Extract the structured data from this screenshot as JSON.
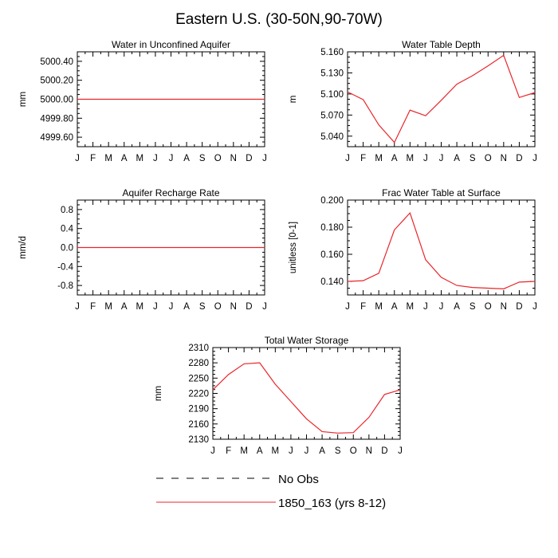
{
  "title": "Eastern U.S. (30-50N,90-70W)",
  "colors": {
    "model": "#e8262b",
    "obs": "#000000",
    "frame": "#000000"
  },
  "legend": [
    {
      "key": "obs",
      "label": "No Obs",
      "style": "dashed",
      "color": "#000000"
    },
    {
      "key": "model",
      "label": "1850_163 (yrs 8-12)",
      "style": "solid",
      "color": "#e8262b"
    }
  ],
  "chart_data": [
    {
      "id": "aquifer-water",
      "type": "line",
      "title": "Water in Unconfined Aquifer",
      "ylabel": "mm",
      "categories": [
        "J",
        "F",
        "M",
        "A",
        "M",
        "J",
        "J",
        "A",
        "S",
        "O",
        "N",
        "D",
        "J"
      ],
      "ylim": [
        4999.5,
        5000.5
      ],
      "yticks": [
        4999.6,
        4999.8,
        5000.0,
        5000.2,
        5000.4
      ],
      "ytick_labels": [
        "4999.60",
        "4999.80",
        "5000.00",
        "5000.20",
        "5000.40"
      ],
      "series": [
        {
          "values": [
            5000,
            5000,
            5000,
            5000,
            5000,
            5000,
            5000,
            5000,
            5000,
            5000,
            5000,
            5000,
            5000
          ]
        }
      ]
    },
    {
      "id": "water-table-depth",
      "type": "line",
      "title": "Water Table Depth",
      "ylabel": "m",
      "categories": [
        "J",
        "F",
        "M",
        "A",
        "M",
        "J",
        "J",
        "A",
        "S",
        "O",
        "N",
        "D",
        "J"
      ],
      "ylim": [
        5.025,
        5.16
      ],
      "yticks": [
        5.04,
        5.07,
        5.1,
        5.13,
        5.16
      ],
      "ytick_labels": [
        "5.040",
        "5.070",
        "5.100",
        "5.130",
        "5.160"
      ],
      "series": [
        {
          "values": [
            5.103,
            5.092,
            5.056,
            5.031,
            5.077,
            5.069,
            5.091,
            5.114,
            5.126,
            5.14,
            5.155,
            5.095,
            5.102
          ]
        }
      ]
    },
    {
      "id": "recharge-rate",
      "type": "line",
      "title": "Aquifer Recharge Rate",
      "ylabel": "mm/d",
      "categories": [
        "J",
        "F",
        "M",
        "A",
        "M",
        "J",
        "J",
        "A",
        "S",
        "O",
        "N",
        "D",
        "J"
      ],
      "ylim": [
        -1.0,
        1.0
      ],
      "yticks": [
        -0.8,
        -0.4,
        0.0,
        0.4,
        0.8
      ],
      "ytick_labels": [
        "-0.8",
        "-0.4",
        "0.0",
        "0.4",
        "0.8"
      ],
      "series": [
        {
          "values": [
            0,
            0,
            0,
            0,
            0,
            0,
            0,
            0,
            0,
            0,
            0,
            0,
            0
          ]
        }
      ]
    },
    {
      "id": "frac-water-table",
      "type": "line",
      "title": "Frac Water Table at Surface",
      "ylabel": "unitless [0-1]",
      "categories": [
        "J",
        "F",
        "M",
        "A",
        "M",
        "J",
        "J",
        "A",
        "S",
        "O",
        "N",
        "D",
        "J"
      ],
      "ylim": [
        0.13,
        0.2
      ],
      "yticks": [
        0.14,
        0.16,
        0.18,
        0.2
      ],
      "ytick_labels": [
        "0.140",
        "0.160",
        "0.180",
        "0.200"
      ],
      "series": [
        {
          "values": [
            0.14,
            0.1405,
            0.146,
            0.178,
            0.1905,
            0.156,
            0.143,
            0.137,
            0.1355,
            0.135,
            0.1345,
            0.1395,
            0.14
          ]
        }
      ]
    },
    {
      "id": "total-water-storage",
      "type": "line",
      "title": "Total Water Storage",
      "ylabel": "mm",
      "categories": [
        "J",
        "F",
        "M",
        "A",
        "M",
        "J",
        "J",
        "A",
        "S",
        "O",
        "N",
        "D",
        "J"
      ],
      "ylim": [
        2130,
        2310
      ],
      "yticks": [
        2130,
        2160,
        2190,
        2220,
        2250,
        2280,
        2310
      ],
      "ytick_labels": [
        "2130",
        "2160",
        "2190",
        "2220",
        "2250",
        "2280",
        "2310"
      ],
      "series": [
        {
          "values": [
            2227,
            2257,
            2278,
            2280,
            2238,
            2204,
            2170,
            2145,
            2142,
            2143,
            2173,
            2218,
            2227
          ]
        }
      ]
    }
  ]
}
